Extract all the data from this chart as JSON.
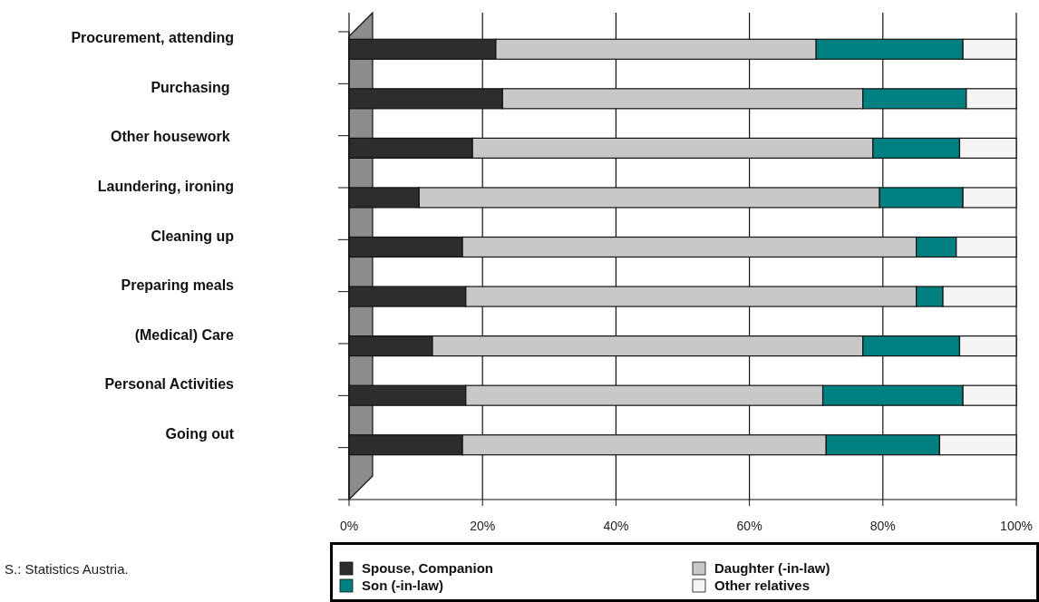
{
  "chart_data": {
    "type": "bar",
    "orientation": "horizontal",
    "stacked": true,
    "categories": [
      "Procurement, attending",
      "Purchasing ",
      "Other housework ",
      "Laundering, ironing",
      "Cleaning up",
      "Preparing meals",
      "(Medical) Care",
      "Personal Activities",
      "Going out"
    ],
    "series": [
      {
        "name": "Spouse, Companion",
        "color": "#2d2d2d",
        "values": [
          22,
          23,
          18.5,
          10.5,
          17,
          17.5,
          12.5,
          17.5,
          17
        ]
      },
      {
        "name": "Daughter (-in-law)",
        "color": "#c8c8c8",
        "values": [
          48,
          54,
          60,
          69,
          68,
          67.5,
          64.5,
          53.5,
          54.5
        ]
      },
      {
        "name": "Son (-in-law)",
        "color": "#008080",
        "values": [
          22,
          15.5,
          13,
          12.5,
          6,
          4,
          14.5,
          21,
          17
        ]
      },
      {
        "name": "Other relatives",
        "color": "#f5f5f5",
        "values": [
          8,
          7.5,
          8.5,
          8,
          9,
          11,
          8.5,
          8,
          11.5
        ]
      }
    ],
    "xlim": [
      0,
      100
    ],
    "xticks": [
      {
        "value": 0,
        "label": "0%"
      },
      {
        "value": 20,
        "label": "20%"
      },
      {
        "value": 40,
        "label": "40%"
      },
      {
        "value": 60,
        "label": "60%"
      },
      {
        "value": 80,
        "label": "80%"
      },
      {
        "value": 100,
        "label": "100%"
      }
    ],
    "grid": "x",
    "legend": "bottom",
    "annotations": [
      "S.: Statistics Austria."
    ]
  }
}
